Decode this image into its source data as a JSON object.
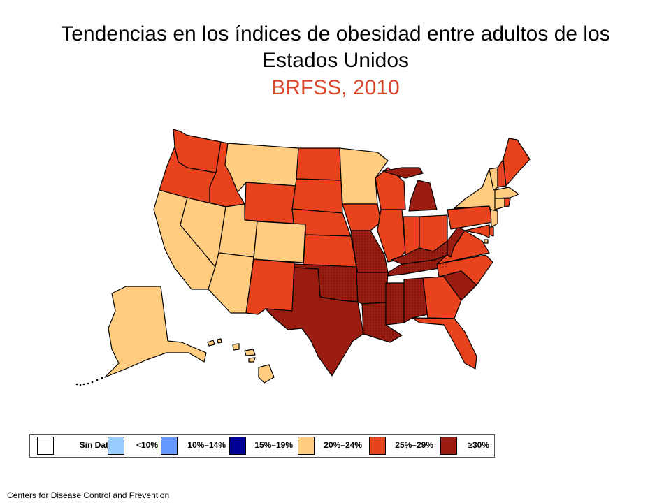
{
  "title": {
    "line1": "Tendencias en los índices de obesidad entre adultos de los",
    "line2": "Estados Unidos",
    "subtitle": "BRFSS, 2010"
  },
  "colors": {
    "subtitle": "#d9472b",
    "no_data": "#ffffff",
    "lt10": "#99ccff",
    "r10_14": "#6699ff",
    "r15_19": "#000099",
    "r20_24": "#ffcc80",
    "r25_29": "#e8431c",
    "ge30": "#9b1c10"
  },
  "legend": [
    {
      "label": "Sin Datos",
      "color": "#ffffff"
    },
    {
      "label": "<10%",
      "color": "#99ccff"
    },
    {
      "label": "10%–14%",
      "color": "#6699ff"
    },
    {
      "label": "15%–19%",
      "color": "#000099"
    },
    {
      "label": "20%–24%",
      "color": "#ffcc80"
    },
    {
      "label": "25%–29%",
      "color": "#e8431c"
    },
    {
      "label": "≥30%",
      "color": "#9b1c10"
    }
  ],
  "states": {
    "WA": "25-29",
    "OR": "25-29",
    "CA": "20-24",
    "NV": "20-24",
    "ID": "25-29",
    "MT": "20-24",
    "WY": "25-29",
    "UT": "20-24",
    "CO": "20-24",
    "AZ": "20-24",
    "NM": "25-29",
    "ND": "25-29",
    "SD": "25-29",
    "NE": "25-29",
    "KS": "25-29",
    "OK": ">=30",
    "TX": ">=30",
    "MN": "20-24",
    "IA": "25-29",
    "MO": ">=30",
    "AR": ">=30",
    "LA": ">=30",
    "WI": "25-29",
    "IL": "25-29",
    "MI": ">=30",
    "IN": "25-29",
    "OH": "25-29",
    "KY": ">=30",
    "TN": ">=30",
    "MS": ">=30",
    "AL": ">=30",
    "GA": "25-29",
    "FL": "25-29",
    "SC": ">=30",
    "NC": "25-29",
    "VA": "25-29",
    "WV": ">=30",
    "PA": "25-29",
    "NY": "20-24",
    "VT": "20-24",
    "NH": "25-29",
    "ME": "25-29",
    "MA": "20-24",
    "RI": "25-29",
    "CT": "20-24",
    "NJ": "20-24",
    "DE": "25-29",
    "MD": "25-29",
    "DC": "20-24",
    "AK": "20-24",
    "HI": "20-24"
  },
  "footer": "Centers for Disease Control and Prevention"
}
